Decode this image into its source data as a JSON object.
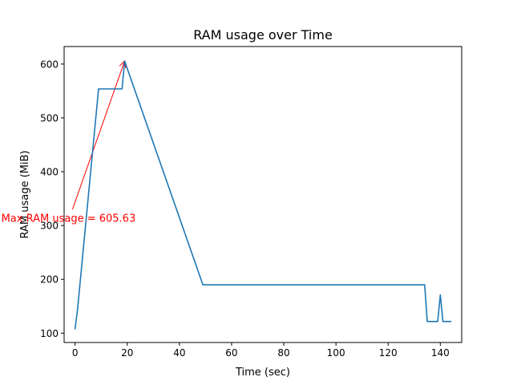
{
  "chart_data": {
    "type": "line",
    "title": "RAM usage over Time",
    "xlabel": "Time (sec)",
    "ylabel": "RAM usage (MiB)",
    "xlim": [
      -4.2,
      148.2
    ],
    "ylim": [
      82.6,
      632.6
    ],
    "x_ticks": [
      0,
      20,
      40,
      60,
      80,
      100,
      120,
      140
    ],
    "y_ticks": [
      100,
      200,
      300,
      400,
      500,
      600
    ],
    "grid": false,
    "series": [
      {
        "color": "#1f77b4",
        "x": [
          0,
          1,
          9,
          10,
          17,
          18,
          19,
          49,
          50,
          134,
          135,
          136,
          137,
          138,
          139,
          140,
          141,
          142,
          143,
          144
        ],
        "y": [
          108.3,
          146.5,
          553.8,
          553.8,
          553.8,
          553.8,
          605.63,
          189.8,
          189.8,
          189.8,
          121.6,
          121.6,
          121.6,
          121.6,
          121.6,
          171.0,
          121.6,
          121.6,
          121.6,
          121.6
        ]
      }
    ],
    "annotation": {
      "text": "Max RAM usage = 605.63",
      "color": "#ff0000",
      "x": 19,
      "y": 605.63,
      "text_x": -1,
      "text_y": 330
    }
  }
}
